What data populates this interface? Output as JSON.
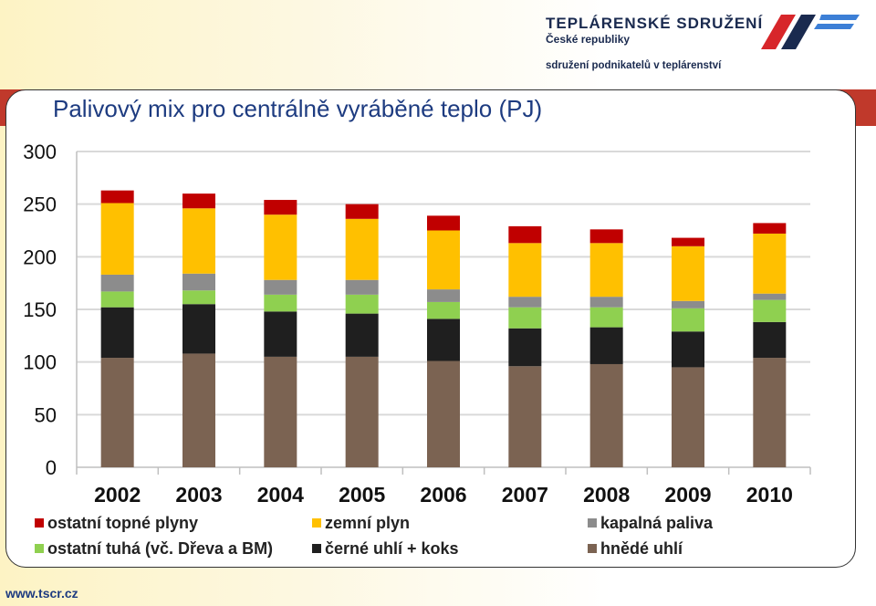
{
  "header": {
    "org_title": "TEPLÁRENSKÉ SDRUŽENÍ",
    "org_subtitle": "České republiky",
    "tagline": "sdružení podnikatelů v teplárenství",
    "brand_colors": {
      "red": "#d7262a",
      "navy": "#1a2a4f",
      "blue": "#3c7fd6"
    }
  },
  "footer": {
    "url": "www.tscr.cz"
  },
  "chart_data": {
    "type": "bar",
    "stacked": true,
    "title": "Palivový mix pro centrálně vyráběné teplo (PJ)",
    "categories": [
      "2002",
      "2003",
      "2004",
      "2005",
      "2006",
      "2007",
      "2008",
      "2009",
      "2010"
    ],
    "ylim": [
      0,
      300
    ],
    "yticks": [
      0,
      50,
      100,
      150,
      200,
      250,
      300
    ],
    "grid": true,
    "legend_position": "bottom",
    "series": [
      {
        "name": "hnědé uhlí",
        "color": "#7b6352",
        "values": [
          104,
          108,
          105,
          105,
          101,
          96,
          98,
          95,
          104
        ]
      },
      {
        "name": "černé uhlí + koks",
        "color": "#1f1f1f",
        "values": [
          48,
          47,
          43,
          41,
          40,
          36,
          35,
          34,
          34
        ]
      },
      {
        "name": "ostatní tuhá (vč. Dřeva a BM)",
        "color": "#8fd050",
        "values": [
          15,
          13,
          16,
          18,
          16,
          20,
          19,
          22,
          21
        ]
      },
      {
        "name": "kapalná paliva",
        "color": "#8c8c8c",
        "values": [
          16,
          16,
          14,
          14,
          12,
          10,
          10,
          7,
          6
        ]
      },
      {
        "name": "zemní plyn",
        "color": "#ffc000",
        "values": [
          68,
          62,
          62,
          58,
          56,
          51,
          51,
          52,
          57
        ]
      },
      {
        "name": "ostatní topné plyny",
        "color": "#c00000",
        "values": [
          12,
          14,
          14,
          14,
          14,
          16,
          13,
          8,
          10
        ]
      }
    ],
    "legend_order": [
      "ostatní topné plyny",
      "zemní plyn",
      "kapalná paliva",
      "ostatní tuhá (vč. Dřeva a BM)",
      "černé uhlí + koks",
      "hnědé uhlí"
    ]
  }
}
